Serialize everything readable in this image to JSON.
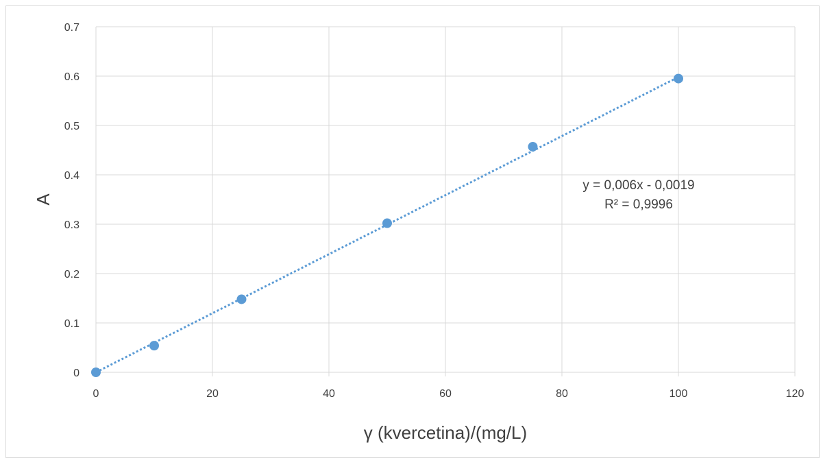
{
  "chart_data": {
    "type": "scatter",
    "x": [
      0,
      10,
      25,
      50,
      75,
      100
    ],
    "y": [
      0,
      0.054,
      0.148,
      0.302,
      0.457,
      0.595
    ],
    "xlabel": "γ (kvercetina)/(mg/L)",
    "ylabel": "A",
    "xlim": [
      0,
      120
    ],
    "ylim": [
      0,
      0.7
    ],
    "x_ticks": [
      "0",
      "20",
      "40",
      "60",
      "80",
      "100",
      "120"
    ],
    "y_ticks": [
      "0",
      "0.1",
      "0.2",
      "0.3",
      "0.4",
      "0.5",
      "0.6",
      "0.7"
    ],
    "grid": true,
    "legend": "none",
    "trendline": {
      "type": "linear",
      "slope": 0.006,
      "intercept": -0.0019,
      "style": "dotted",
      "equation_label": "y = 0,006x - 0,0019",
      "r2_label": "R² = 0,9996"
    },
    "colors": {
      "series": "#5b9bd5",
      "grid": "#d9d9d9",
      "text": "#404040"
    }
  }
}
